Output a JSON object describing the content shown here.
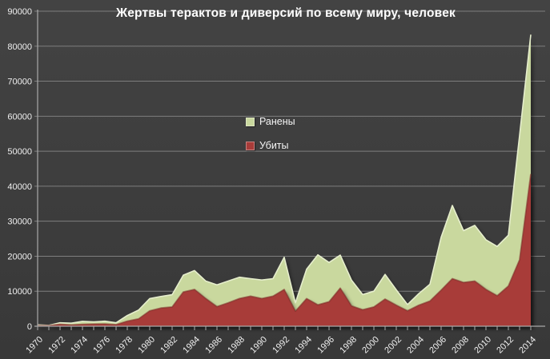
{
  "title": "Жертвы терактов и диверсий по всему миру, человек",
  "legend": {
    "wounded": "Ранены",
    "killed": "Убиты"
  },
  "colors": {
    "background": "#3d3d3d",
    "gridline": "#7e7e7e",
    "axis": "#a9a9a9",
    "label_text": "#efefef",
    "title_text": "#ffffff",
    "wounded_fill": "#c9d89e",
    "wounded_edge": "#e6eecd",
    "killed_fill": "#a83c39",
    "killed_edge": "#7a2a27"
  },
  "chart_data": {
    "type": "area",
    "stacked": true,
    "grid": true,
    "legend_position": "inside-upper-center",
    "title": "Жертвы терактов и диверсий по всему миру, человек",
    "xlabel": "",
    "ylabel": "",
    "ylim": [
      0,
      90000
    ],
    "y_tick_step": 10000,
    "y_tick_labels": [
      "0",
      "10000",
      "20000",
      "30000",
      "40000",
      "50000",
      "60000",
      "70000",
      "80000",
      "90000"
    ],
    "x": [
      1970,
      1971,
      1972,
      1973,
      1974,
      1975,
      1976,
      1977,
      1978,
      1979,
      1980,
      1981,
      1982,
      1983,
      1984,
      1985,
      1986,
      1987,
      1988,
      1989,
      1990,
      1991,
      1992,
      1993,
      1994,
      1995,
      1996,
      1997,
      1998,
      1999,
      2000,
      2001,
      2002,
      2003,
      2004,
      2005,
      2006,
      2007,
      2008,
      2009,
      2010,
      2011,
      2012,
      2013,
      2014
    ],
    "x_tick_labels": [
      "1970",
      "1972",
      "1974",
      "1976",
      "1978",
      "1980",
      "1982",
      "1984",
      "1986",
      "1988",
      "1990",
      "1992",
      "1994",
      "1996",
      "1998",
      "2000",
      "2002",
      "2004",
      "2006",
      "2008",
      "2010",
      "2012",
      "2014"
    ],
    "series": [
      {
        "name": "Убиты",
        "color": "#a83c39",
        "values": [
          174,
          173,
          566,
          370,
          539,
          617,
          672,
          456,
          1460,
          2100,
          4400,
          5200,
          5500,
          9800,
          10500,
          7900,
          5600,
          6700,
          7900,
          8600,
          7900,
          8600,
          10500,
          4300,
          7900,
          6100,
          7000,
          10900,
          5800,
          4700,
          5500,
          7760,
          6000,
          4400,
          6000,
          7200,
          10300,
          13600,
          12500,
          12900,
          10500,
          8700,
          11500,
          19000,
          43500
        ]
      },
      {
        "name": "Ранены",
        "color": "#c9d89e",
        "values": [
          212,
          82,
          409,
          495,
          865,
          617,
          756,
          518,
          1600,
          2500,
          3500,
          3300,
          3500,
          4800,
          5400,
          5000,
          6200,
          6200,
          6100,
          5000,
          5300,
          5000,
          9200,
          2400,
          8400,
          14300,
          11200,
          9400,
          7400,
          4350,
          4500,
          7040,
          4400,
          1800,
          3300,
          4800,
          15100,
          20900,
          14800,
          15900,
          14200,
          14100,
          14500,
          35500,
          39800
        ]
      }
    ]
  }
}
